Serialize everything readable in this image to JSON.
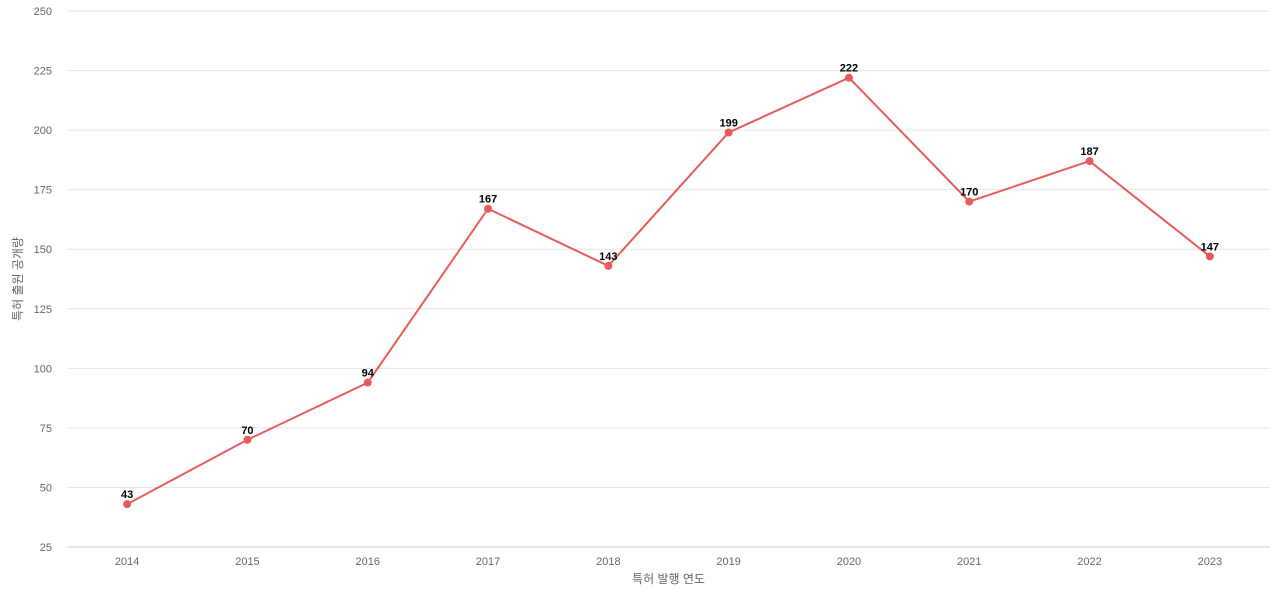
{
  "chart_data": {
    "type": "line",
    "title": "",
    "xlabel": "특허 발행 연도",
    "ylabel": "특허 출원 공개량",
    "categories": [
      "2014",
      "2015",
      "2016",
      "2017",
      "2018",
      "2019",
      "2020",
      "2021",
      "2022",
      "2023"
    ],
    "series": [
      {
        "values": [
          43,
          70,
          94,
          167,
          143,
          199,
          222,
          170,
          187,
          147
        ],
        "color": "#e85b5b"
      }
    ],
    "ylim": [
      25,
      250
    ],
    "yticks": [
      25,
      50,
      75,
      100,
      125,
      150,
      175,
      200,
      225,
      250
    ],
    "grid": true,
    "legend": "none",
    "data_labels": true
  }
}
